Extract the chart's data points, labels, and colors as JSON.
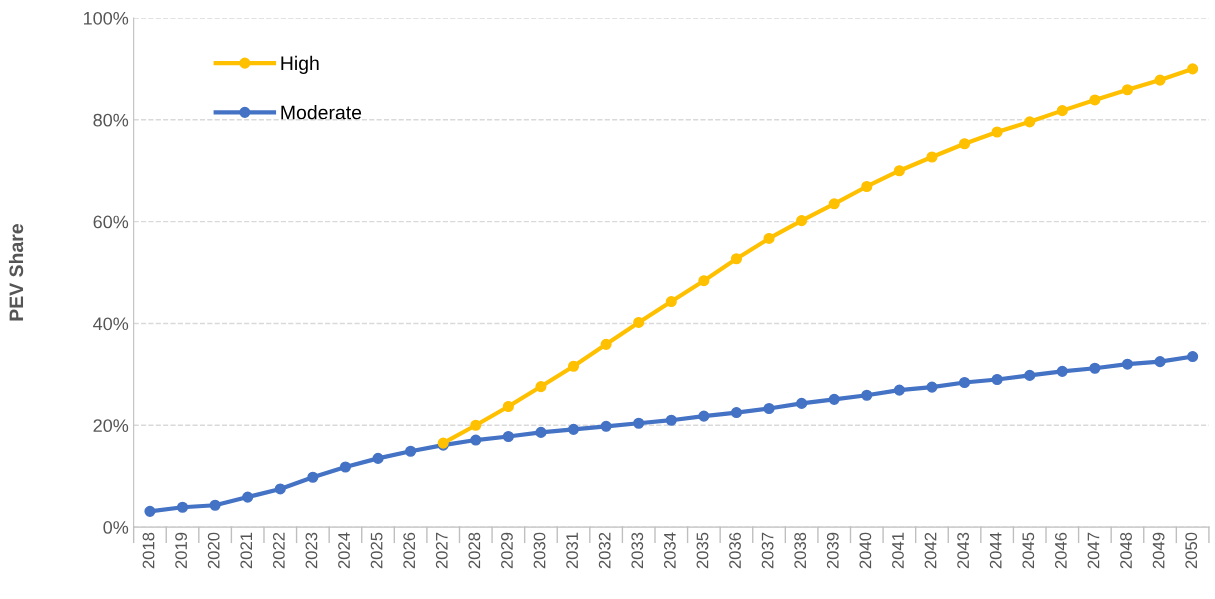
{
  "chart_data": {
    "type": "line",
    "ylabel": "PEV Share",
    "categories": [
      "2018",
      "2019",
      "2020",
      "2021",
      "2022",
      "2023",
      "2024",
      "2025",
      "2026",
      "2027",
      "2028",
      "2029",
      "2030",
      "2031",
      "2032",
      "2033",
      "2034",
      "2035",
      "2036",
      "2037",
      "2038",
      "2039",
      "2040",
      "2041",
      "2042",
      "2043",
      "2044",
      "2045",
      "2046",
      "2047",
      "2048",
      "2049",
      "2050"
    ],
    "series": [
      {
        "name": "High",
        "color": "#ffc000",
        "values": [
          null,
          null,
          null,
          null,
          null,
          null,
          null,
          null,
          null,
          16.5,
          20.0,
          23.7,
          27.6,
          31.6,
          35.9,
          40.2,
          44.3,
          48.4,
          52.7,
          56.7,
          60.2,
          63.5,
          66.9,
          70.0,
          72.7,
          75.3,
          77.6,
          79.6,
          81.8,
          83.9,
          85.9,
          87.8,
          90.0
        ]
      },
      {
        "name": "Moderate",
        "color": "#4472c4",
        "values": [
          3.1,
          3.9,
          4.3,
          5.9,
          7.5,
          9.8,
          11.8,
          13.5,
          14.9,
          16.1,
          17.1,
          17.8,
          18.6,
          19.2,
          19.8,
          20.4,
          21.0,
          21.8,
          22.5,
          23.3,
          24.3,
          25.1,
          25.9,
          26.9,
          27.5,
          28.4,
          29.0,
          29.8,
          30.6,
          31.2,
          32.0,
          32.5,
          33.5
        ]
      }
    ],
    "ylim": [
      0,
      100
    ],
    "yticks": [
      {
        "value": 0,
        "label": "0%"
      },
      {
        "value": 20,
        "label": "20%"
      },
      {
        "value": 40,
        "label": "40%"
      },
      {
        "value": 60,
        "label": "60%"
      },
      {
        "value": 80,
        "label": "80%"
      },
      {
        "value": 100,
        "label": "100%"
      }
    ],
    "grid": "y",
    "legend": "top left",
    "marker": "circle",
    "line_style": "solid"
  }
}
